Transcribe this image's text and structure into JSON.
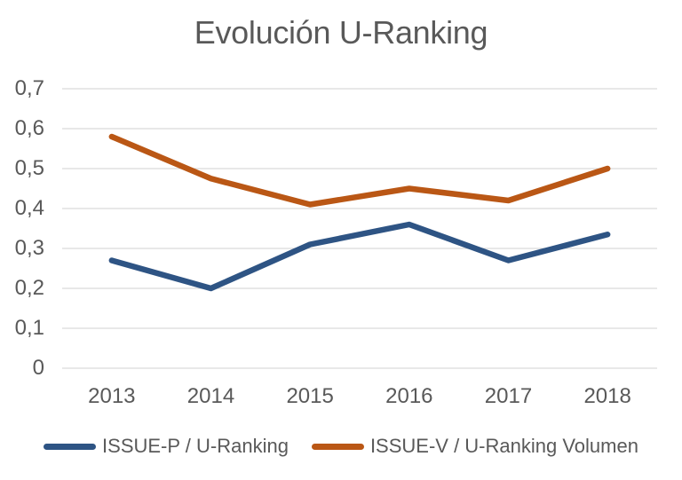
{
  "title": "Evolución U-Ranking",
  "colors": {
    "background": "#FFFFFF",
    "gridline": "#D9D9D9",
    "text": "#595959",
    "series_blue": "#2E5484",
    "series_orange": "#BA5715"
  },
  "chart_data": {
    "type": "line",
    "title": "Evolución U-Ranking",
    "categories": [
      "2013",
      "2014",
      "2015",
      "2016",
      "2017",
      "2018"
    ],
    "series": [
      {
        "name": "ISSUE-P / U-Ranking",
        "color": "#2E5484",
        "values": [
          0.27,
          0.2,
          0.31,
          0.36,
          0.27,
          0.335
        ]
      },
      {
        "name": "ISSUE-V / U-Ranking Volumen",
        "color": "#BA5715",
        "values": [
          0.58,
          0.475,
          0.41,
          0.45,
          0.42,
          0.5
        ]
      }
    ],
    "ylim": [
      0,
      0.7
    ],
    "yticks": {
      "values": [
        0,
        0.1,
        0.2,
        0.3,
        0.4,
        0.5,
        0.6,
        0.7
      ],
      "labels": [
        "0",
        "0,1",
        "0,2",
        "0,3",
        "0,4",
        "0,5",
        "0,6",
        "0,7"
      ]
    },
    "xlabel": "",
    "ylabel": "",
    "grid": true,
    "legend_position": "bottom"
  }
}
